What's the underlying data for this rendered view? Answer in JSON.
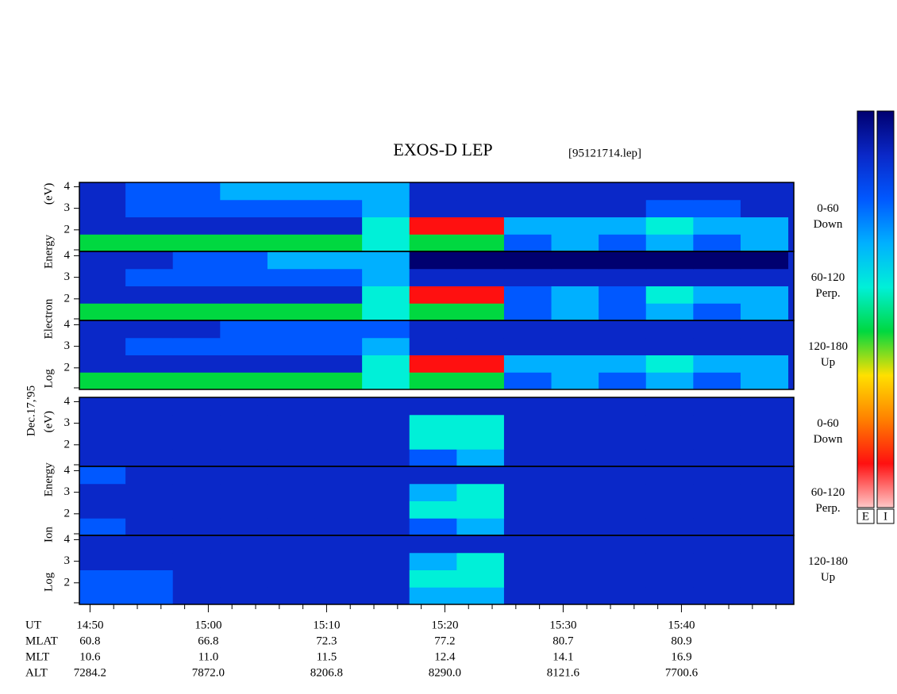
{
  "chart_data": {
    "type": "heatmap",
    "title": "EXOS-D LEP",
    "file_label": "[95121714.lep]",
    "date_label": "Dec.17,'95",
    "group_labels": [
      "Log Electron Energy (eV)",
      "Log Ion Energy (eV)"
    ],
    "xlim": [
      889.1,
      949.5
    ],
    "xticks": [
      {
        "value": 890,
        "label": "14:50"
      },
      {
        "value": 900,
        "label": "15:00"
      },
      {
        "value": 910,
        "label": "15:10"
      },
      {
        "value": 920,
        "label": "15:20"
      },
      {
        "value": 930,
        "label": "15:30"
      },
      {
        "value": 940,
        "label": "15:40"
      }
    ],
    "xminor_ticks": [
      892,
      894,
      896,
      898,
      902,
      904,
      906,
      908,
      912,
      914,
      916,
      918,
      922,
      924,
      926,
      928,
      932,
      934,
      936,
      938,
      942,
      944,
      946,
      948
    ],
    "ylim": [
      1,
      4.2
    ],
    "yticks": [
      2,
      3,
      4
    ],
    "yminor_ticks": [
      1
    ],
    "xbins": [
      889,
      893,
      897,
      901,
      905,
      909,
      913,
      917,
      921,
      925,
      929,
      933,
      937,
      941,
      945,
      949
    ],
    "ybins": [
      1,
      1.8,
      2.6,
      3.4,
      4.2
    ],
    "colorscale": [
      "#000070",
      "#0a28c8",
      "#0058ff",
      "#00b0ff",
      "#00f0d8",
      "#00d840",
      "#ffe000",
      "#ff8000",
      "#ff1010",
      "#ffc8c8"
    ],
    "colorbar_labels": [
      "E",
      "I"
    ],
    "panels": [
      {
        "label": [
          "0-60",
          "Down"
        ],
        "z": [
          [
            5,
            5,
            5,
            5,
            5,
            5,
            4,
            5,
            5,
            2,
            3,
            2,
            3,
            2,
            3
          ],
          [
            1,
            1,
            1,
            1,
            1,
            1,
            4,
            8,
            8,
            3,
            3,
            3,
            4,
            3,
            3
          ],
          [
            1,
            2,
            2,
            2,
            2,
            2,
            3,
            1,
            1,
            1,
            1,
            1,
            2,
            2,
            1
          ],
          [
            1,
            2,
            2,
            3,
            3,
            3,
            3,
            1,
            1,
            1,
            1,
            1,
            1,
            1,
            1
          ]
        ]
      },
      {
        "label": [
          "60-120",
          "Perp."
        ],
        "z": [
          [
            5,
            5,
            5,
            5,
            5,
            5,
            4,
            5,
            5,
            2,
            3,
            2,
            3,
            2,
            3
          ],
          [
            1,
            1,
            1,
            1,
            1,
            1,
            4,
            8,
            8,
            2,
            3,
            2,
            4,
            3,
            3
          ],
          [
            1,
            2,
            2,
            2,
            2,
            2,
            3,
            1,
            1,
            1,
            1,
            1,
            1,
            1,
            1
          ],
          [
            1,
            1,
            2,
            2,
            3,
            3,
            3,
            0,
            0,
            0,
            0,
            0,
            0,
            0,
            0
          ]
        ]
      },
      {
        "label": [
          "120-180",
          "Up"
        ],
        "z": [
          [
            5,
            5,
            5,
            5,
            5,
            5,
            4,
            5,
            5,
            2,
            3,
            2,
            3,
            2,
            3
          ],
          [
            1,
            1,
            1,
            1,
            1,
            1,
            4,
            8,
            8,
            3,
            3,
            3,
            4,
            3,
            3
          ],
          [
            1,
            2,
            2,
            2,
            2,
            2,
            3,
            1,
            1,
            1,
            1,
            1,
            1,
            1,
            1
          ],
          [
            1,
            1,
            1,
            2,
            2,
            2,
            2,
            1,
            1,
            1,
            1,
            1,
            1,
            1,
            1
          ]
        ]
      },
      {
        "label": [
          "0-60",
          "Down"
        ],
        "z": [
          [
            1,
            1,
            1,
            1,
            1,
            1,
            1,
            2,
            3,
            1,
            1,
            1,
            1,
            1,
            1
          ],
          [
            1,
            1,
            1,
            1,
            1,
            1,
            1,
            4,
            4,
            1,
            1,
            1,
            1,
            1,
            1
          ],
          [
            1,
            1,
            1,
            1,
            1,
            1,
            1,
            4,
            4,
            1,
            1,
            1,
            1,
            1,
            1
          ],
          [
            1,
            1,
            1,
            1,
            1,
            1,
            1,
            1,
            1,
            1,
            1,
            1,
            1,
            1,
            1
          ]
        ]
      },
      {
        "label": [
          "60-120",
          "Perp."
        ],
        "z": [
          [
            2,
            1,
            1,
            1,
            1,
            1,
            1,
            2,
            3,
            1,
            1,
            1,
            1,
            1,
            1
          ],
          [
            1,
            1,
            1,
            1,
            1,
            1,
            1,
            4,
            4,
            1,
            1,
            1,
            1,
            1,
            1
          ],
          [
            1,
            1,
            1,
            1,
            1,
            1,
            1,
            3,
            4,
            1,
            1,
            1,
            1,
            1,
            1
          ],
          [
            2,
            1,
            1,
            1,
            1,
            1,
            1,
            1,
            1,
            1,
            1,
            1,
            1,
            1,
            1
          ]
        ]
      },
      {
        "label": [
          "120-180",
          "Up"
        ],
        "z": [
          [
            2,
            2,
            1,
            1,
            1,
            1,
            1,
            3,
            3,
            1,
            1,
            1,
            1,
            1,
            1
          ],
          [
            2,
            2,
            1,
            1,
            1,
            1,
            1,
            4,
            4,
            1,
            1,
            1,
            1,
            1,
            1
          ],
          [
            1,
            1,
            1,
            1,
            1,
            1,
            1,
            3,
            4,
            1,
            1,
            1,
            1,
            1,
            1
          ],
          [
            1,
            1,
            1,
            1,
            1,
            1,
            1,
            1,
            1,
            1,
            1,
            1,
            1,
            1,
            1
          ]
        ]
      }
    ],
    "ephemeris": {
      "row_labels": [
        "UT",
        "MLAT",
        "MLT",
        "ALT"
      ],
      "rows": [
        [
          "60.8",
          "66.8",
          "72.3",
          "77.2",
          "80.7",
          "80.9"
        ],
        [
          "10.6",
          "11.0",
          "11.5",
          "12.4",
          "14.1",
          "16.9"
        ],
        [
          "7284.2",
          "7872.0",
          "8206.8",
          "8290.0",
          "8121.6",
          "7700.6"
        ]
      ]
    }
  }
}
